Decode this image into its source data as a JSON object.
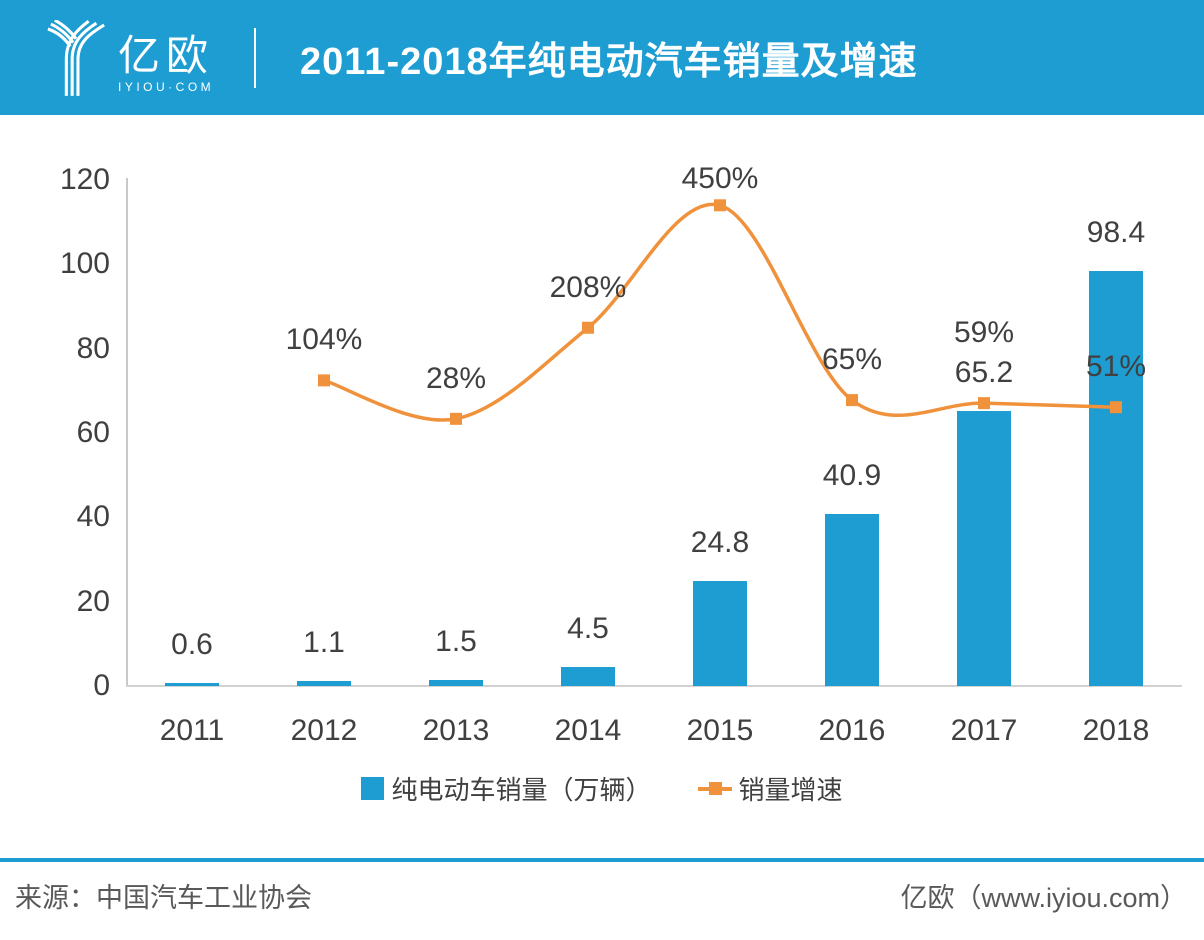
{
  "header": {
    "logo_name": "亿欧",
    "logo_sub": "IYIOU·COM",
    "title": "2011-2018年纯电动汽车销量及增速"
  },
  "chart_data": {
    "type": "bar+line",
    "title": "2011-2018年纯电动汽车销量及增速",
    "categories": [
      "2011",
      "2012",
      "2013",
      "2014",
      "2015",
      "2016",
      "2017",
      "2018"
    ],
    "series": [
      {
        "name": "纯电动车销量（万辆）",
        "type": "bar",
        "color": "#1D9DD2",
        "axis": "left",
        "values": [
          0.6,
          1.1,
          1.5,
          4.5,
          24.8,
          40.9,
          65.2,
          98.4
        ],
        "labels": [
          "0.6",
          "1.1",
          "1.5",
          "4.5",
          "24.8",
          "40.9",
          "65.2",
          "98.4"
        ]
      },
      {
        "name": "销量增速",
        "type": "line",
        "color": "#F0913B",
        "axis": "right",
        "smooth": true,
        "marker": "square",
        "x_categories": [
          "2012",
          "2013",
          "2014",
          "2015",
          "2016",
          "2017",
          "2018"
        ],
        "values": [
          104,
          28,
          208,
          450,
          65,
          59,
          51
        ],
        "labels": [
          "104%",
          "28%",
          "208%",
          "450%",
          "65%",
          "59%",
          "51%"
        ]
      }
    ],
    "left_axis": {
      "min": 0,
      "max": 120,
      "ticks": [
        0,
        20,
        40,
        60,
        80,
        100,
        120
      ],
      "tick_labels": [
        "0",
        "20",
        "40",
        "60",
        "80",
        "100",
        "120"
      ]
    },
    "right_axis": {
      "min": -500,
      "max": 500,
      "visible": false
    },
    "grid": false,
    "legend_position": "bottom"
  },
  "legend": {
    "bar_label": "纯电动车销量（万辆）",
    "line_label": "销量增速"
  },
  "footer": {
    "source": "来源：中国汽车工业协会",
    "credit": "亿欧（www.iyiou.com）"
  },
  "colors": {
    "brand_blue": "#1D9DD2",
    "accent_orange": "#F0913B",
    "label_dark": "#404040",
    "axis_gray": "#C9C9C9",
    "footer_gray": "#595959"
  }
}
